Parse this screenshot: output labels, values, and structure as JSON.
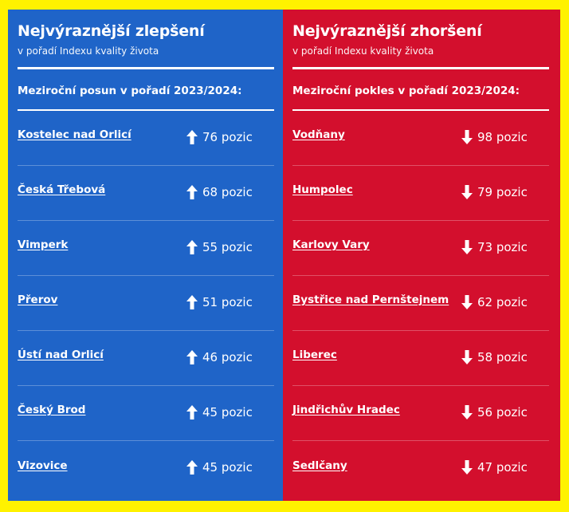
{
  "left_panel": {
    "title": "Nejvýraznější zlepšení",
    "subtitle": "v pořadí Indexu kvality života",
    "section_heading": "Meziroční posun v pořadí 2023/2024:",
    "color": "#1f64c8",
    "arrow_icon": "arrow-up-icon",
    "items": [
      {
        "city": "Kostelec nad Orlicí",
        "change": "76 pozic"
      },
      {
        "city": "Česká Třebová",
        "change": "68 pozic"
      },
      {
        "city": "Vimperk",
        "change": "55 pozic"
      },
      {
        "city": "Přerov",
        "change": "51 pozic"
      },
      {
        "city": "Ústí nad Orlicí",
        "change": "46 pozic"
      },
      {
        "city": "Český Brod",
        "change": "45 pozic"
      },
      {
        "city": "Vizovice",
        "change": "45 pozic"
      }
    ]
  },
  "right_panel": {
    "title": "Nejvýraznější zhoršení",
    "subtitle": "v pořadí Indexu kvality života",
    "section_heading": "Meziroční pokles v pořadí 2023/2024:",
    "color": "#d30f2d",
    "arrow_icon": "arrow-down-icon",
    "items": [
      {
        "city": "Vodňany",
        "change": "98 pozic"
      },
      {
        "city": "Humpolec",
        "change": "79 pozic"
      },
      {
        "city": "Karlovy Vary",
        "change": "73 pozic"
      },
      {
        "city": "Bystřice nad Pernštejnem",
        "change": "62 pozic"
      },
      {
        "city": "Liberec",
        "change": "58 pozic"
      },
      {
        "city": "Jindřichův Hradec",
        "change": "56 pozic"
      },
      {
        "city": "Sedlčany",
        "change": "47 pozic"
      }
    ]
  },
  "frame_color": "#fff200"
}
